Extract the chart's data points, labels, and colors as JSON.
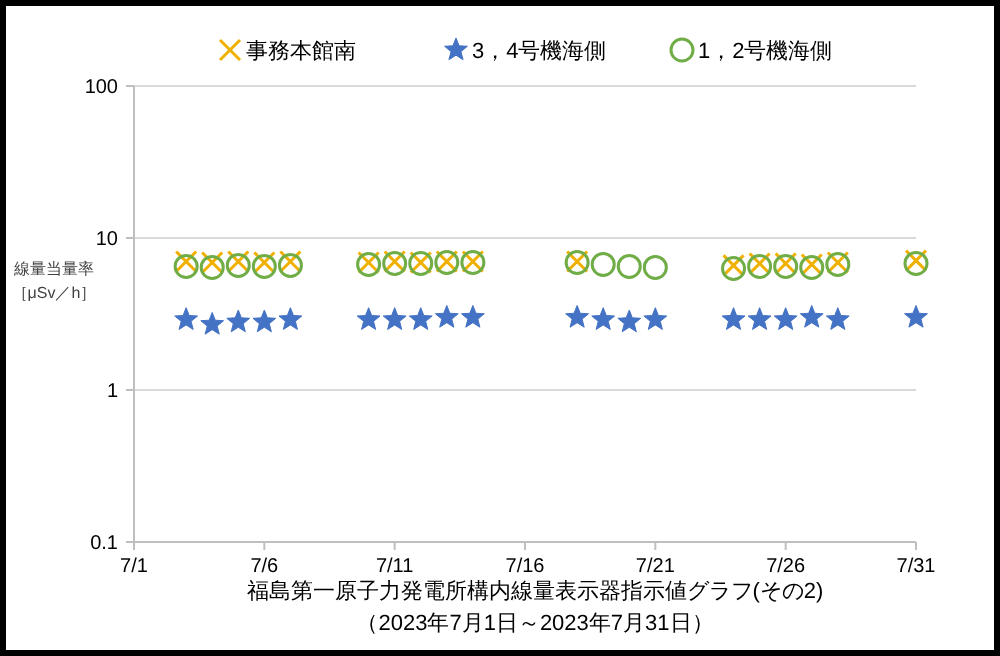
{
  "chart_data": {
    "type": "scatter",
    "title": "福島第一原子力発電所構内線量表示器指示値グラフ(その2)",
    "subtitle": "（2023年7月1日～2023年7月31日）",
    "ylabel": "線量当量率［μSv／h］",
    "x": [
      "2023-07-03",
      "2023-07-04",
      "2023-07-05",
      "2023-07-06",
      "2023-07-07",
      "2023-07-10",
      "2023-07-11",
      "2023-07-12",
      "2023-07-13",
      "2023-07-14",
      "2023-07-18",
      "2023-07-19",
      "2023-07-20",
      "2023-07-21",
      "2023-07-24",
      "2023-07-25",
      "2023-07-26",
      "2023-07-27",
      "2023-07-28",
      "2023-07-31"
    ],
    "series": [
      {
        "name": "事務本館南",
        "color": "#f0b000",
        "marker": "cross",
        "values": [
          7.0,
          6.9,
          7.0,
          6.9,
          7.0,
          6.9,
          7.0,
          6.9,
          7.0,
          7.0,
          7.0,
          null,
          null,
          null,
          6.6,
          6.8,
          6.8,
          6.7,
          6.9,
          7.1
        ]
      },
      {
        "name": "3，4号機海側",
        "color": "#4472c4",
        "marker": "star",
        "values": [
          2.9,
          2.7,
          2.8,
          2.8,
          2.9,
          2.9,
          2.9,
          2.9,
          3.0,
          3.0,
          3.0,
          2.9,
          2.8,
          2.9,
          2.9,
          2.9,
          2.9,
          3.0,
          2.9,
          3.0
        ]
      },
      {
        "name": "1，2号機海側",
        "color": "#70ad47",
        "marker": "circle",
        "values": [
          6.5,
          6.4,
          6.6,
          6.5,
          6.6,
          6.7,
          6.8,
          6.8,
          6.9,
          6.9,
          6.9,
          6.7,
          6.5,
          6.4,
          6.3,
          6.5,
          6.5,
          6.4,
          6.7,
          6.8
        ]
      }
    ],
    "xlim": [
      "2023-07-01",
      "2023-07-31"
    ],
    "xticks": [
      {
        "value": "2023-07-01",
        "label": "7/1"
      },
      {
        "value": "2023-07-06",
        "label": "7/6"
      },
      {
        "value": "2023-07-11",
        "label": "7/11"
      },
      {
        "value": "2023-07-16",
        "label": "7/16"
      },
      {
        "value": "2023-07-21",
        "label": "7/21"
      },
      {
        "value": "2023-07-26",
        "label": "7/26"
      },
      {
        "value": "2023-07-31",
        "label": "7/31"
      }
    ],
    "ylim": [
      0.1,
      100
    ],
    "yticks": [
      0.1,
      1,
      10,
      100
    ],
    "log": true,
    "grid": "y",
    "legend": "top"
  }
}
